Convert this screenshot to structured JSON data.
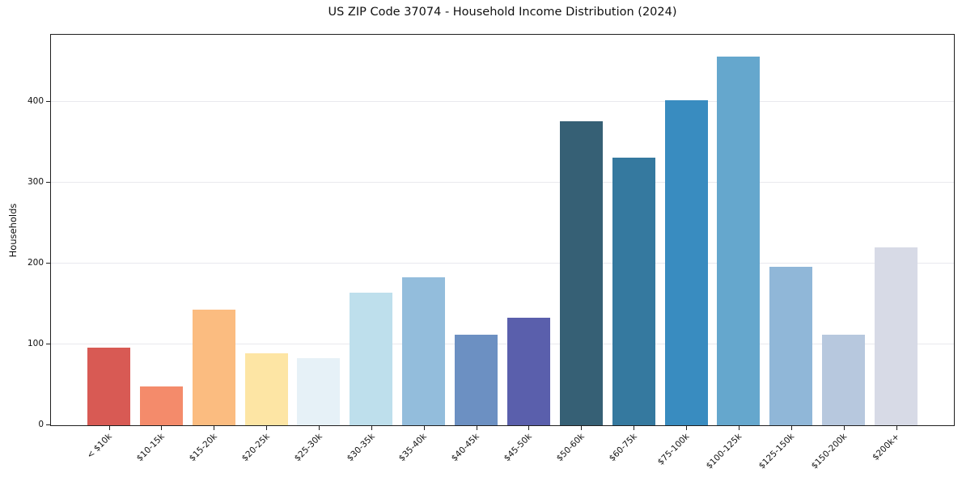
{
  "title": "US ZIP Code 37074 - Household Income Distribution (2024)",
  "chart_data": {
    "type": "bar",
    "title": "US ZIP Code 37074 - Household Income Distribution (2024)",
    "xlabel": "",
    "ylabel": "Households",
    "categories": [
      "< $10k",
      "$10-15k",
      "$15-20k",
      "$20-25k",
      "$25-30k",
      "$30-35k",
      "$35-40k",
      "$40-45k",
      "$45-50k",
      "$50-60k",
      "$60-75k",
      "$75-100k",
      "$100-125k",
      "$125-150k",
      "$150-200k",
      "$200k+"
    ],
    "values": [
      96,
      48,
      143,
      89,
      83,
      164,
      183,
      112,
      133,
      376,
      331,
      402,
      456,
      196,
      112,
      220
    ],
    "bar_colors": [
      "#d85a54",
      "#f48b6b",
      "#fbbc80",
      "#fde5a4",
      "#e6f1f7",
      "#bedfec",
      "#93bddc",
      "#6c90c2",
      "#5a5fac",
      "#366075",
      "#35799f",
      "#398cc0",
      "#65a7cd",
      "#90b7d8",
      "#b7c8de",
      "#d7dae6"
    ],
    "ylim": [
      0,
      483
    ],
    "yticks": [
      0,
      100,
      200,
      300,
      400
    ],
    "legend": "none",
    "grid": "horizontal",
    "background_color": "#ffffff",
    "gridline_color": "#e9e9ee",
    "axis_color": "#1f1f1f",
    "x_tick_rotation_deg": 45
  }
}
